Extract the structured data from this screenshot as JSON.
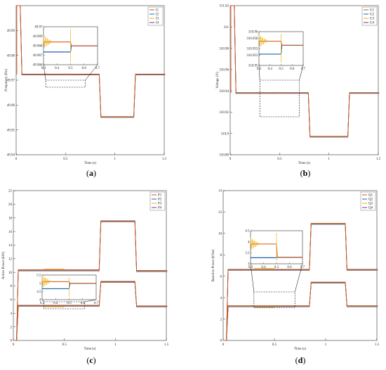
{
  "colors": {
    "s1": "#d95319",
    "s2": "#0072bd",
    "s3": "#edb120",
    "s4": "#7e2f8e",
    "box": "#000000"
  },
  "captions": [
    {
      "open": "(",
      "label": "a",
      "close": ")"
    },
    {
      "open": "(",
      "label": "b",
      "close": ")"
    },
    {
      "open": "(",
      "label": "c",
      "close": ")"
    },
    {
      "open": "(",
      "label": "d",
      "close": ")"
    }
  ],
  "chart_data": [
    {
      "type": "line",
      "title": "",
      "xlabel": "Time (s)",
      "ylabel": "Frequency (Hz)",
      "xlim": [
        0,
        1.5
      ],
      "ylim": [
        49.94,
        50
      ],
      "xticks": [
        "0",
        "0.5",
        "1",
        "1.5"
      ],
      "yticks": [
        "49.94",
        "49.95",
        "49.96",
        "49.97",
        "49.98",
        "49.99"
      ],
      "legend_position": "top-right",
      "series": [
        {
          "name": "f1",
          "values_desc": "steady 49.9723 (0.05-0.85 s), 49.9552 (0.85-1.2 s), 49.9723 (1.2-1.5 s)"
        },
        {
          "name": "f2"
        },
        {
          "name": "f3"
        },
        {
          "name": "f4"
        }
      ],
      "steps": [
        [
          0,
          50.0
        ],
        [
          0.05,
          49.9723
        ],
        [
          0.85,
          49.9552
        ],
        [
          1.2,
          49.9723
        ],
        [
          1.5,
          49.9723
        ]
      ],
      "inset": {
        "xlim": [
          0.3,
          0.7
        ],
        "ylim": [
          49.966,
          49.97
        ],
        "xticks": [
          "0.3",
          "0.4",
          "0.5",
          "0.6",
          "0.7"
        ],
        "yticks": [
          "49.966",
          "49.967",
          "49.968",
          "49.969",
          "49.97"
        ],
        "upper_level": 49.9684,
        "lower_level": 49.9674,
        "merged_level": 49.968
      }
    },
    {
      "type": "line",
      "title": "",
      "xlabel": "Time (s)",
      "ylabel": "Voltage (V)",
      "xlim": [
        0,
        1.5
      ],
      "ylim": [
        310.88,
        311.02
      ],
      "xticks": [
        "0",
        "0.5",
        "1",
        "1.5"
      ],
      "yticks": [
        "310.88",
        "310.9",
        "310.92",
        "310.94",
        "310.96",
        "310.98",
        "311",
        "311.02"
      ],
      "legend_position": "top-right",
      "series": [
        {
          "name": "U1"
        },
        {
          "name": "U2"
        },
        {
          "name": "U3"
        },
        {
          "name": "U4"
        }
      ],
      "steps": [
        [
          0,
          311.02
        ],
        [
          0.05,
          310.938
        ],
        [
          0.8,
          310.897
        ],
        [
          1.2,
          310.938
        ],
        [
          1.5,
          310.938
        ]
      ],
      "inset": {
        "xlim": [
          0.3,
          0.7
        ],
        "ylim": [
          310.95,
          310.96
        ],
        "xticks": [
          "0.3",
          "0.4",
          "0.5",
          "0.6",
          "0.7"
        ],
        "yticks": [
          "310.95",
          "310.953",
          "310.955",
          "310.958",
          "310.96"
        ],
        "upper_level": 310.9572,
        "lower_level": 310.9535,
        "merged_level": 310.956
      }
    },
    {
      "type": "line",
      "title": "",
      "xlabel": "Time (s)",
      "ylabel": "Active Power (kW)",
      "xlim": [
        0,
        1.5
      ],
      "ylim": [
        0,
        22
      ],
      "xticks": [
        "0",
        "0.5",
        "1",
        "1.5"
      ],
      "yticks": [
        "0",
        "2",
        "4",
        "6",
        "8",
        "10",
        "12",
        "14",
        "16",
        "18",
        "20",
        "22"
      ],
      "legend_position": "top-right",
      "series": [
        {
          "name": "P1"
        },
        {
          "name": "P2"
        },
        {
          "name": "P3"
        },
        {
          "name": "P4"
        }
      ],
      "upper_steps": [
        [
          0,
          0
        ],
        [
          0.04,
          10.3
        ],
        [
          0.85,
          17.5
        ],
        [
          1.2,
          10.2
        ],
        [
          1.5,
          10.2
        ]
      ],
      "lower_steps": [
        [
          0,
          0
        ],
        [
          0.04,
          5.1
        ],
        [
          0.85,
          8.6
        ],
        [
          1.2,
          5.0
        ],
        [
          1.5,
          5.0
        ]
      ],
      "inset": {
        "xlim": [
          0.3,
          0.7
        ],
        "ylim": [
          4,
          5.5
        ],
        "xticks": [
          "0.3",
          "0.4",
          "0.5",
          "0.6",
          "0.7"
        ],
        "yticks": [
          "4",
          "4.5",
          "5",
          "5.5"
        ],
        "upper_level": 5.1,
        "lower_level": 4.7,
        "merged_level": 5.0
      }
    },
    {
      "type": "line",
      "title": "",
      "xlabel": "Time (s)",
      "ylabel": "Reactive Power (kVar)",
      "xlim": [
        0,
        1.5
      ],
      "ylim": [
        0,
        14
      ],
      "xticks": [
        "0",
        "0.5",
        "1",
        "1.5"
      ],
      "yticks": [
        "0",
        "2",
        "4",
        "6",
        "8",
        "10",
        "12",
        "14"
      ],
      "legend_position": "top-right",
      "series": [
        {
          "name": "Q1"
        },
        {
          "name": "Q2"
        },
        {
          "name": "Q3"
        },
        {
          "name": "Q4"
        }
      ],
      "upper_steps": [
        [
          0,
          0
        ],
        [
          0.04,
          6.6
        ],
        [
          0.85,
          10.9
        ],
        [
          1.2,
          6.6
        ],
        [
          1.5,
          6.6
        ]
      ],
      "lower_steps": [
        [
          0,
          0
        ],
        [
          0.04,
          3.2
        ],
        [
          0.85,
          5.4
        ],
        [
          1.2,
          3.2
        ],
        [
          1.5,
          3.2
        ]
      ],
      "inset": {
        "xlim": [
          0.3,
          0.7
        ],
        "ylim": [
          3,
          4.5
        ],
        "xticks": [
          "0.3",
          "0.4",
          "0.5",
          "0.6",
          "0.7"
        ],
        "yticks": [
          "3",
          "3.5",
          "4",
          "4.5"
        ],
        "upper_level": 3.9,
        "lower_level": 3.3,
        "merged_level": 3.3
      }
    }
  ]
}
